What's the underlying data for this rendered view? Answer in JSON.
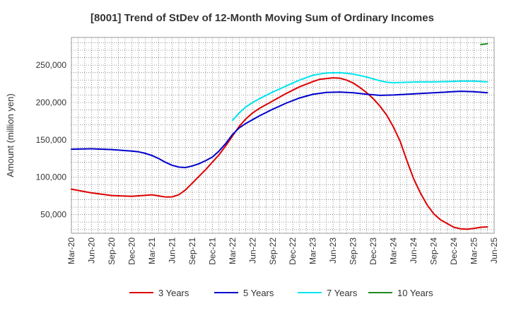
{
  "chart_data": {
    "type": "line",
    "title": "[8001]  Trend of StDev of 12-Month Moving Sum of Ordinary Incomes",
    "ylabel": "Amount (million yen)",
    "xlabel": "",
    "ylim": [
      25000,
      287000
    ],
    "yticks": [
      50000,
      100000,
      150000,
      200000,
      250000
    ],
    "ytick_labels": [
      "50,000",
      "100,000",
      "150,000",
      "200,000",
      "250,000"
    ],
    "x_start": "2020-03",
    "x_end": "2025-06",
    "x_tick_labels": [
      "Mar-20",
      "Jun-20",
      "Sep-20",
      "Dec-20",
      "Mar-21",
      "Jun-21",
      "Sep-21",
      "Dec-21",
      "Mar-22",
      "Jun-22",
      "Sep-22",
      "Dec-22",
      "Mar-23",
      "Jun-23",
      "Sep-23",
      "Dec-23",
      "Mar-24",
      "Jun-24",
      "Sep-24",
      "Dec-24",
      "Mar-25",
      "Jun-25"
    ],
    "grid": true,
    "legend_position": "bottom",
    "series": [
      {
        "name": "3 Years",
        "color": "#dd0000",
        "points": [
          [
            0,
            84000
          ],
          [
            3,
            79000
          ],
          [
            6,
            75500
          ],
          [
            9,
            74500
          ],
          [
            12,
            76500
          ],
          [
            13,
            75000
          ],
          [
            14,
            73500
          ],
          [
            15,
            73700
          ],
          [
            16,
            76500
          ],
          [
            17,
            83000
          ],
          [
            18,
            92000
          ],
          [
            20,
            110000
          ],
          [
            22,
            130000
          ],
          [
            23,
            142000
          ],
          [
            24,
            155000
          ],
          [
            25,
            168000
          ],
          [
            26,
            178000
          ],
          [
            27,
            186000
          ],
          [
            28,
            192000
          ],
          [
            30,
            202000
          ],
          [
            32,
            212000
          ],
          [
            34,
            221000
          ],
          [
            36,
            228000
          ],
          [
            37,
            231000
          ],
          [
            38,
            232000
          ],
          [
            39,
            233000
          ],
          [
            40,
            232500
          ],
          [
            41,
            230000
          ],
          [
            42,
            226000
          ],
          [
            43,
            220000
          ],
          [
            44,
            213000
          ],
          [
            45,
            205000
          ],
          [
            46,
            195000
          ],
          [
            47,
            183000
          ],
          [
            48,
            167000
          ],
          [
            49,
            148000
          ],
          [
            50,
            122000
          ],
          [
            51,
            98000
          ],
          [
            52,
            79000
          ],
          [
            53,
            63000
          ],
          [
            54,
            51000
          ],
          [
            55,
            43000
          ],
          [
            56,
            38000
          ],
          [
            57,
            33000
          ],
          [
            58,
            31000
          ],
          [
            59,
            30500
          ],
          [
            60,
            31500
          ],
          [
            61,
            33000
          ],
          [
            62,
            33500
          ]
        ]
      },
      {
        "name": "5 Years",
        "color": "#0000cc",
        "points": [
          [
            0,
            137500
          ],
          [
            3,
            138000
          ],
          [
            6,
            137000
          ],
          [
            9,
            135000
          ],
          [
            10,
            134000
          ],
          [
            11,
            132000
          ],
          [
            12,
            129000
          ],
          [
            13,
            125000
          ],
          [
            14,
            120000
          ],
          [
            15,
            116000
          ],
          [
            16,
            113500
          ],
          [
            17,
            113000
          ],
          [
            18,
            115000
          ],
          [
            19,
            118000
          ],
          [
            20,
            122000
          ],
          [
            21,
            127000
          ],
          [
            22,
            135000
          ],
          [
            23,
            145000
          ],
          [
            24,
            157000
          ],
          [
            25,
            166000
          ],
          [
            26,
            172000
          ],
          [
            28,
            182000
          ],
          [
            30,
            191000
          ],
          [
            32,
            199000
          ],
          [
            34,
            206000
          ],
          [
            36,
            211000
          ],
          [
            38,
            213500
          ],
          [
            40,
            214000
          ],
          [
            42,
            213000
          ],
          [
            44,
            211000
          ],
          [
            46,
            209500
          ],
          [
            48,
            210000
          ],
          [
            50,
            211000
          ],
          [
            52,
            212000
          ],
          [
            54,
            213000
          ],
          [
            56,
            214000
          ],
          [
            58,
            215000
          ],
          [
            60,
            214500
          ],
          [
            62,
            213000
          ]
        ]
      },
      {
        "name": "7 Years",
        "color": "#00e5ee",
        "points": [
          [
            24,
            176000
          ],
          [
            25,
            186000
          ],
          [
            26,
            194000
          ],
          [
            27,
            200000
          ],
          [
            28,
            205000
          ],
          [
            30,
            214000
          ],
          [
            32,
            222000
          ],
          [
            34,
            230000
          ],
          [
            36,
            236500
          ],
          [
            38,
            239500
          ],
          [
            40,
            240000
          ],
          [
            42,
            238000
          ],
          [
            44,
            234000
          ],
          [
            46,
            229000
          ],
          [
            47,
            227000
          ],
          [
            48,
            226500
          ],
          [
            50,
            227000
          ],
          [
            52,
            227500
          ],
          [
            54,
            227500
          ],
          [
            56,
            228000
          ],
          [
            58,
            228500
          ],
          [
            60,
            228500
          ],
          [
            62,
            227500
          ]
        ]
      },
      {
        "name": "10 Years",
        "color": "#228b22",
        "points": [
          [
            61,
            277500
          ],
          [
            62,
            278500
          ]
        ]
      }
    ]
  }
}
